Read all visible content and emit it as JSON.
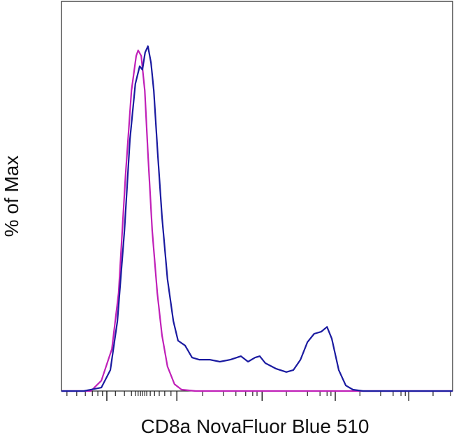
{
  "chart_data": {
    "type": "line",
    "xlabel": "CD8a NovaFluor Blue 510",
    "ylabel": "% of Max",
    "xlim": [
      0,
      100
    ],
    "ylim": [
      0,
      113
    ],
    "xticks": [
      11.6,
      29.5,
      51.3,
      70.0,
      88.8
    ],
    "xminorticks": [
      1.4,
      3.9,
      6.1,
      7.9,
      9.3,
      10.5,
      13.8,
      16.1,
      17.9,
      18.9,
      19.6,
      20.2,
      20.7,
      21.3,
      21.8,
      22.7,
      23.8,
      25.0,
      26.4,
      28.0,
      36.1,
      41.4,
      44.6,
      47.1,
      48.9,
      50.0,
      57.5,
      62.9,
      66.1,
      67.9,
      68.9,
      76.3,
      81.6,
      84.8,
      86.8,
      87.9,
      95.0,
      99.5
    ],
    "series": [
      {
        "color": "#c020b8",
        "x": [
          0,
          7.5,
          10.2,
          12.9,
          14.6,
          16.4,
          17.9,
          19.1,
          19.6,
          20.4,
          21.3,
          22.1,
          23.2,
          24.5,
          25.7,
          27.1,
          28.9,
          30.7,
          34.3,
          100
        ],
        "values": [
          0,
          0,
          3.0,
          12.2,
          28.4,
          62.8,
          87.1,
          97.2,
          98.8,
          97.2,
          87.1,
          68.9,
          46.6,
          28.4,
          16.2,
          7.1,
          2.0,
          0.4,
          0,
          0
        ]
      },
      {
        "color": "#1a1aa0",
        "x": [
          0,
          5.7,
          10.2,
          12.5,
          14.3,
          16.1,
          17.5,
          18.9,
          20.0,
          20.7,
          21.4,
          22.1,
          22.9,
          23.6,
          24.6,
          25.7,
          27.1,
          28.6,
          29.8,
          31.6,
          33.4,
          35.2,
          37.9,
          40.5,
          43.2,
          45.9,
          47.7,
          49.5,
          50.7,
          52.1,
          54.8,
          57.5,
          59.3,
          61.1,
          62.9,
          64.6,
          66.4,
          67.9,
          69.1,
          70.9,
          72.7,
          74.5,
          77.1,
          100
        ],
        "values": [
          0,
          0,
          1.0,
          6.1,
          20.3,
          46.6,
          72.9,
          89.1,
          94.2,
          93.2,
          98.2,
          100,
          95.2,
          87.1,
          68.9,
          50.6,
          32.4,
          20.3,
          14.6,
          13.2,
          9.7,
          9.1,
          9.1,
          8.5,
          9.1,
          10.1,
          8.5,
          9.7,
          10.1,
          8.1,
          6.5,
          5.5,
          6.1,
          9.1,
          14.2,
          16.6,
          17.2,
          18.6,
          15.2,
          6.1,
          1.6,
          0.4,
          0,
          0
        ]
      }
    ]
  }
}
